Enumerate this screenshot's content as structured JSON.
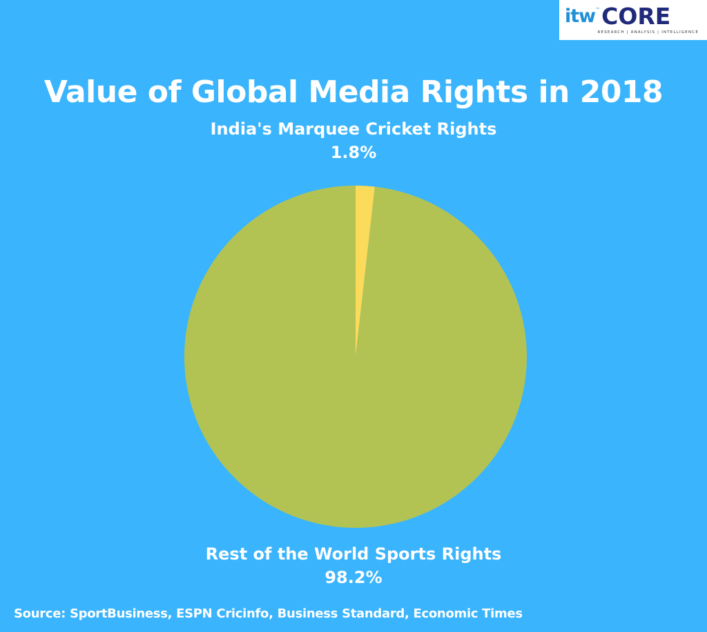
{
  "logo": {
    "brand_prefix": "itw",
    "brand_tm": "™",
    "brand_name": "CORE",
    "tagline": "RESEARCH | ANALYSIS | INTELLIGENCE"
  },
  "colors": {
    "background": "#3ab4fc",
    "rest_slice": "#b2c354",
    "india_slice": "#fbdb59"
  },
  "chart_data": {
    "type": "pie",
    "title": "Value of Global Media Rights in 2018",
    "slices": [
      {
        "label": "India's Marquee Cricket Rights",
        "value": 1.8,
        "value_label": "1.8%",
        "color": "#fbdb59"
      },
      {
        "label": "Rest of the World Sports Rights",
        "value": 98.2,
        "value_label": "98.2%",
        "color": "#b2c354"
      }
    ],
    "start_angle": "12 o'clock",
    "direction": "clockwise",
    "legend": "none"
  },
  "source": "Source: SportBusiness, ESPN Cricinfo, Business Standard, Economic Times"
}
